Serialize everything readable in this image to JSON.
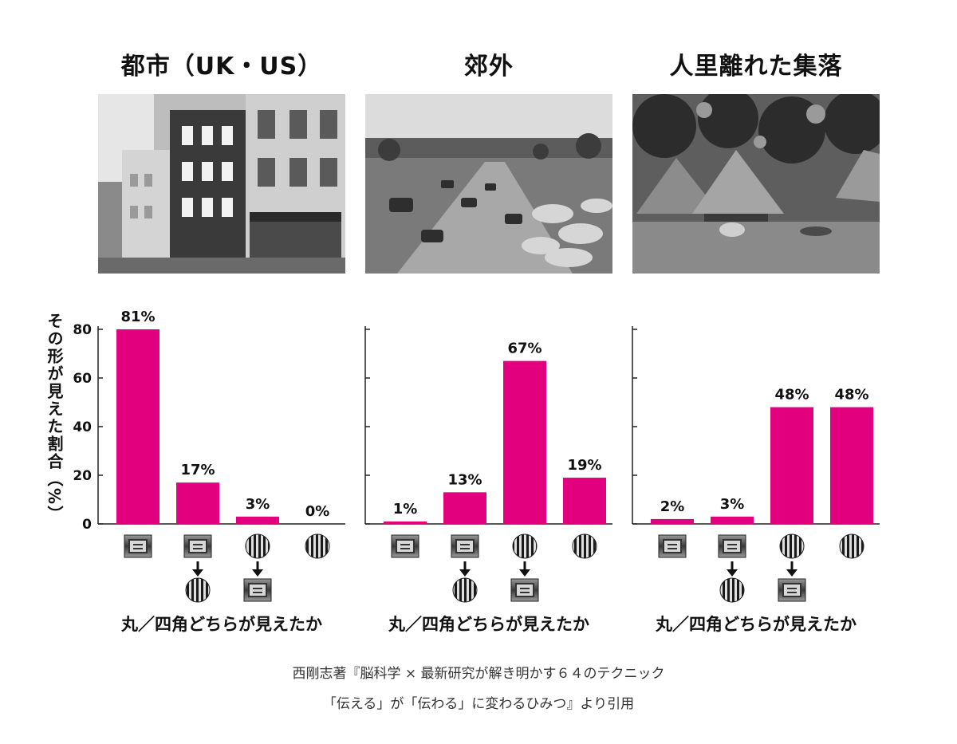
{
  "y_axis_label": "その形が見えた割合（%）",
  "x_axis_caption": "丸／四角どちらが見えたか",
  "citation": {
    "line1": "西剛志著『脳科学 × 最新研究が解き明かす６４のテクニック",
    "line2": "「伝える」が「伝わる」に変わるひみつ』より引用"
  },
  "colors": {
    "bar": "#e3007f",
    "axis": "#222222"
  },
  "icons": [
    "square-pattern-icon",
    "circle-pattern-icon",
    "down-arrow-icon"
  ],
  "chart_data": [
    {
      "type": "bar",
      "title": "都市（UK・US）",
      "categories": [
        "四角",
        "四角→丸",
        "丸→四角",
        "丸"
      ],
      "values": [
        81,
        17,
        3,
        0
      ],
      "data_labels": [
        "81%",
        "17%",
        "3%",
        "0%"
      ],
      "ylim": [
        0,
        80
      ],
      "yticks": [
        0,
        20,
        40,
        60,
        80
      ],
      "ytick_labels": [
        "0",
        "20",
        "40",
        "60",
        "80"
      ],
      "ylabel": "その形が見えた割合（%）",
      "xlabel": "丸／四角どちらが見えたか",
      "photo": "city-street-photo"
    },
    {
      "type": "bar",
      "title": "郊外",
      "categories": [
        "四角",
        "四角→丸",
        "丸→四角",
        "丸"
      ],
      "values": [
        1,
        13,
        67,
        19
      ],
      "data_labels": [
        "1%",
        "13%",
        "67%",
        "19%"
      ],
      "ylim": [
        0,
        80
      ],
      "yticks": [
        0,
        20,
        40,
        60,
        80
      ],
      "xlabel": "丸／四角どちらが見えたか",
      "photo": "suburban-road-photo"
    },
    {
      "type": "bar",
      "title": "人里離れた集落",
      "categories": [
        "四角",
        "四角→丸",
        "丸→四角",
        "丸"
      ],
      "values": [
        2,
        3,
        48,
        48
      ],
      "data_labels": [
        "2%",
        "3%",
        "48%",
        "48%"
      ],
      "ylim": [
        0,
        80
      ],
      "yticks": [
        0,
        20,
        40,
        60,
        80
      ],
      "xlabel": "丸／四角どちらが見えたか",
      "photo": "remote-village-photo"
    }
  ]
}
